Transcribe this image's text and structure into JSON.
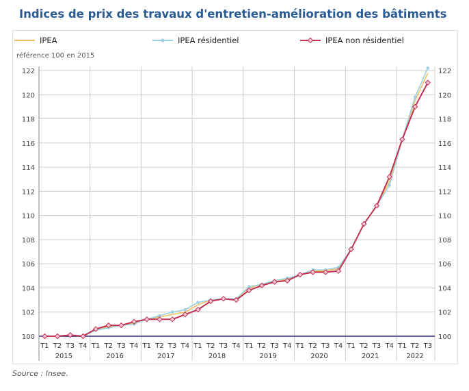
{
  "title": "Indices de prix des travaux d'entretien-amélioration des bâtiments",
  "source": "Source : Insee.",
  "chart_data": {
    "type": "line",
    "ylabel": "référence 100 en 2015",
    "ylim": [
      100,
      122
    ],
    "yticks": [
      100,
      102,
      104,
      106,
      108,
      110,
      112,
      114,
      116,
      118,
      120,
      122
    ],
    "grid": true,
    "legend": "top",
    "years": [
      "2015",
      "2016",
      "2017",
      "2018",
      "2019",
      "2020",
      "2021",
      "2022"
    ],
    "categories": [
      "T1",
      "T2",
      "T3",
      "T4",
      "T1",
      "T2",
      "T3",
      "T4",
      "T1",
      "T2",
      "T3",
      "T4",
      "T1",
      "T2",
      "T3",
      "T4",
      "T1",
      "T2",
      "T3",
      "T4",
      "T1",
      "T2",
      "T3",
      "T4",
      "T1",
      "T2",
      "T3",
      "T4",
      "T1",
      "T2",
      "T3"
    ],
    "series": [
      {
        "name": "IPEA",
        "color": "#f0c060",
        "values": [
          100,
          100,
          100.1,
          100,
          100.5,
          100.8,
          100.9,
          101.1,
          101.4,
          101.6,
          101.8,
          102.0,
          102.6,
          103.0,
          103.1,
          103.1,
          104.0,
          104.3,
          104.6,
          104.7,
          105.1,
          105.4,
          105.4,
          105.6,
          107.2,
          109.3,
          110.8,
          112.8,
          116.3,
          119.5,
          121.8
        ]
      },
      {
        "name": "IPEA résidentiel",
        "color": "#9ccfe0",
        "values": [
          100,
          100,
          100.1,
          100,
          100.5,
          100.7,
          100.9,
          101.0,
          101.4,
          101.7,
          102.0,
          102.2,
          102.8,
          103.0,
          103.1,
          103.1,
          104.1,
          104.3,
          104.6,
          104.8,
          105.1,
          105.5,
          105.5,
          105.7,
          107.2,
          109.3,
          110.8,
          112.5,
          116.3,
          119.8,
          122.2
        ]
      },
      {
        "name": "IPEA non résidentiel",
        "color": "#c03050",
        "values": [
          100,
          100,
          100.1,
          100,
          100.6,
          100.9,
          100.9,
          101.2,
          101.4,
          101.4,
          101.4,
          101.8,
          102.2,
          102.9,
          103.1,
          103.0,
          103.8,
          104.2,
          104.5,
          104.6,
          105.1,
          105.3,
          105.3,
          105.4,
          107.2,
          109.3,
          110.8,
          113.2,
          116.3,
          119.0,
          121.0
        ]
      }
    ]
  }
}
